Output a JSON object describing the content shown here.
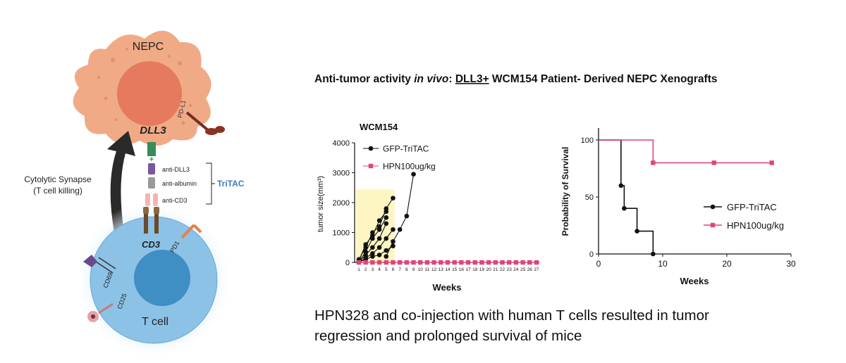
{
  "headline": {
    "prefix": "Anti-tumor activity ",
    "italic": "in vivo",
    "colon": ": ",
    "underlined": "DLL3+",
    "suffix": " WCM154 Patient- Derived NEPC Xenografts"
  },
  "diagram": {
    "nepc_label": "NEPC",
    "dll3_label": "DLL3",
    "pdl1_label": "PD-L1",
    "tritac_domains": [
      "anti-DLL3",
      "anti-albumin",
      "anti-CD3"
    ],
    "tritac_label": "TriTAC",
    "synapse_line1": "Cytolytic Synapse",
    "synapse_line2": "(T cell killing)",
    "cd3_label": "CD3",
    "pd1_label": "PD1",
    "cd69_label": "CD69",
    "cd25_label": "CD25",
    "tcell_label": "T cell",
    "colors": {
      "tumor": "#f0aa86",
      "nucleus": "#e57a5e",
      "tcell": "#8cc2e6",
      "tcell_nucleus": "#3f8ec4",
      "tritac_text": "#3a7bbf"
    }
  },
  "chart_data": [
    {
      "type": "line",
      "title": "WCM154",
      "xlabel": "Weeks",
      "ylabel": "tumor size(mm³)",
      "ylim": [
        0,
        4000
      ],
      "yticks": [
        0,
        1000,
        2000,
        3000,
        4000
      ],
      "xlim": [
        1,
        27
      ],
      "xticks": [
        1,
        2,
        3,
        4,
        5,
        6,
        7,
        8,
        9,
        10,
        11,
        12,
        13,
        14,
        15,
        16,
        17,
        18,
        19,
        20,
        21,
        22,
        23,
        24,
        25,
        26,
        27
      ],
      "shaded_region": {
        "x": [
          1,
          6
        ],
        "y": [
          0,
          2450
        ],
        "color": "#fdf6c3"
      },
      "legend": "top-left",
      "series": [
        {
          "name": "GFP-TriTAC",
          "color": "#111111",
          "marker": "circle",
          "legend": true,
          "x": [
            1,
            2,
            3,
            4,
            5
          ],
          "y": [
            50,
            600,
            900,
            1400,
            1700
          ]
        },
        {
          "name": "",
          "color": "#111111",
          "marker": "circle",
          "legend": false,
          "x": [
            1,
            2,
            3,
            4,
            5,
            6
          ],
          "y": [
            100,
            500,
            1000,
            1200,
            1800,
            2150
          ]
        },
        {
          "name": "",
          "color": "#111111",
          "marker": "circle",
          "legend": false,
          "x": [
            1,
            2,
            3,
            4,
            5
          ],
          "y": [
            30,
            350,
            800,
            1100,
            1500
          ]
        },
        {
          "name": "",
          "color": "#111111",
          "marker": "circle",
          "legend": false,
          "x": [
            1,
            2,
            3,
            4,
            5
          ],
          "y": [
            20,
            250,
            500,
            800,
            1300
          ]
        },
        {
          "name": "",
          "color": "#111111",
          "marker": "circle",
          "legend": false,
          "x": [
            1,
            2,
            3,
            4,
            5,
            6
          ],
          "y": [
            10,
            150,
            300,
            500,
            800,
            1100
          ]
        },
        {
          "name": "",
          "color": "#111111",
          "marker": "circle",
          "legend": false,
          "x": [
            1,
            2,
            3,
            4,
            5,
            6
          ],
          "y": [
            10,
            100,
            200,
            250,
            400,
            550
          ]
        },
        {
          "name": "",
          "color": "#111111",
          "marker": "circle",
          "legend": false,
          "x": [
            5,
            6,
            7,
            8,
            9
          ],
          "y": [
            200,
            700,
            1100,
            1550,
            2950
          ]
        },
        {
          "name": "HPN100ug/kg",
          "color": "#e0457a",
          "marker": "square",
          "legend": true,
          "x": [
            1,
            2,
            3,
            4,
            5,
            6,
            7,
            8,
            9,
            10,
            11,
            12,
            13,
            14,
            15,
            16,
            17,
            18,
            19,
            20,
            21,
            22,
            23,
            24,
            25,
            26,
            27
          ],
          "y": [
            0,
            0,
            0,
            0,
            0,
            0,
            0,
            0,
            0,
            0,
            0,
            0,
            0,
            0,
            0,
            0,
            0,
            0,
            0,
            0,
            0,
            0,
            0,
            0,
            0,
            0,
            0
          ]
        }
      ]
    },
    {
      "type": "line",
      "title": "",
      "xlabel": "Weeks",
      "ylabel": "Probability of Survival",
      "xlim": [
        0,
        30
      ],
      "ylim": [
        0,
        100
      ],
      "xticks": [
        0,
        10,
        20,
        30
      ],
      "yticks": [
        0,
        50,
        100
      ],
      "legend": "right",
      "step": true,
      "series": [
        {
          "name": "GFP-TriTAC",
          "color": "#111111",
          "marker": "circle",
          "x": [
            0,
            3.5,
            4,
            6,
            8.5
          ],
          "y": [
            100,
            60,
            40,
            20,
            0
          ]
        },
        {
          "name": "HPN100ug/kg",
          "color": "#e0457a",
          "marker": "square",
          "x": [
            0,
            8.5,
            18,
            27
          ],
          "y": [
            100,
            80,
            80,
            80
          ]
        }
      ]
    }
  ],
  "conclusion": {
    "line1": "HPN328 and co-injection with human T cells resulted in tumor",
    "line2": "regression and prolonged survival of mice"
  }
}
